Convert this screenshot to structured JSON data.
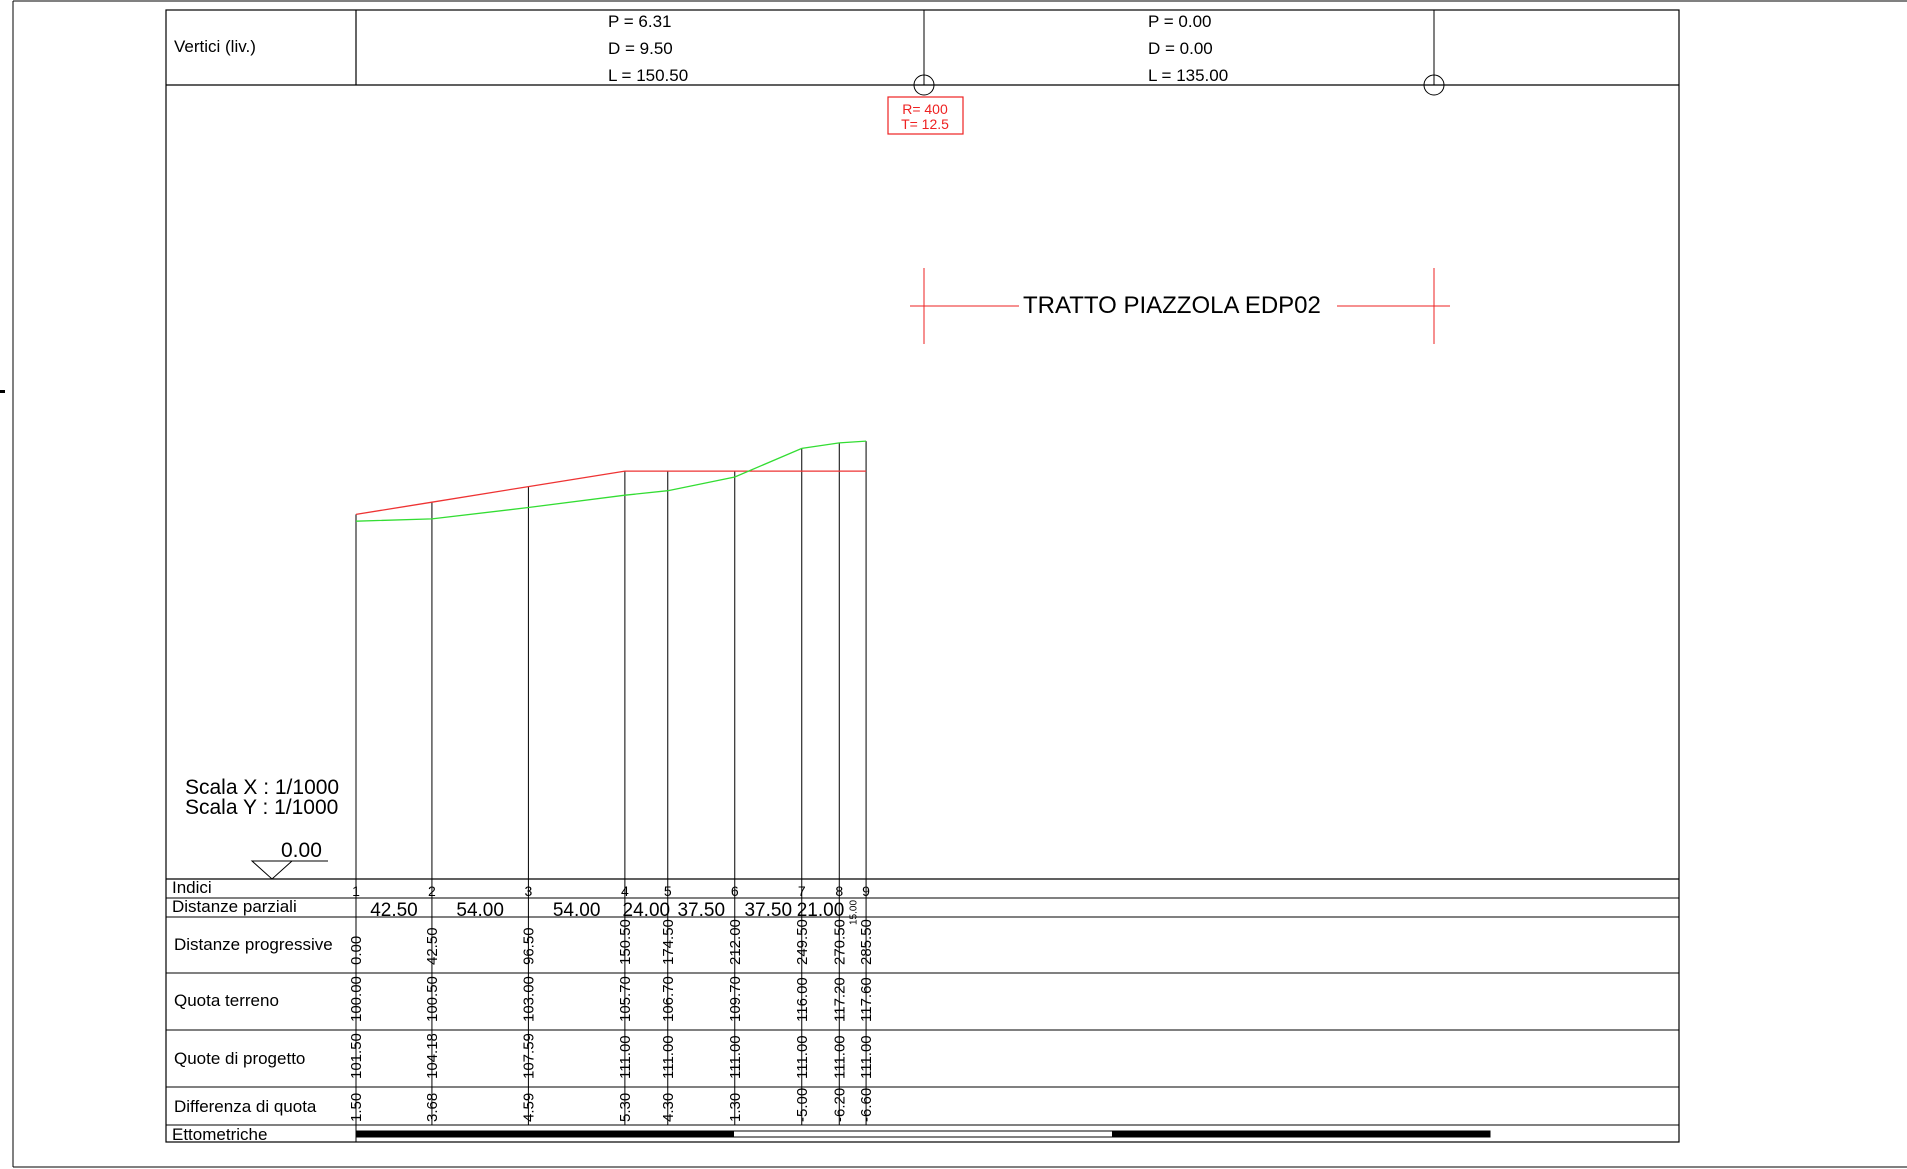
{
  "vertex_header": {
    "label": "Vertici (liv.)",
    "segments": [
      {
        "p": "P = 6.31",
        "d": "D = 9.50",
        "l": "L = 150.50"
      },
      {
        "p": "P = 0.00",
        "d": "D = 0.00",
        "l": "L = 135.00"
      }
    ],
    "curve_box": {
      "r": "R= 400",
      "t": "T= 12.5"
    }
  },
  "section_title": "TRATTO PIAZZOLA EDP02",
  "scale": {
    "x": "Scala X : 1/1000",
    "y": "Scala Y : 1/1000"
  },
  "datum": "0.00",
  "row_labels": {
    "indici": "Indici",
    "parziali": "Distanze parziali",
    "progressive": "Distanze progressive",
    "terreno": "Quota terreno",
    "progetto": "Quote di progetto",
    "differenza": "Differenza di quota",
    "ettometriche": "Ettometriche"
  },
  "colors": {
    "terrain": "#33dd33",
    "project": "#ee3333",
    "frame": "#000000",
    "red_box": "#ee2222"
  },
  "chart_data": {
    "type": "line",
    "title": "TRATTO PIAZZOLA EDP02",
    "x": [
      0.0,
      42.5,
      96.5,
      150.5,
      174.5,
      212.0,
      249.5,
      270.5,
      285.5
    ],
    "indici": [
      "1",
      "2",
      "3",
      "4",
      "5",
      "6",
      "7",
      "8",
      "9"
    ],
    "partial_distances": [
      "42.50",
      "54.00",
      "54.00",
      "24.00",
      "37.50",
      "37.50",
      "21.00",
      "15.00"
    ],
    "progressive": [
      "0.00",
      "42.50",
      "96.50",
      "150.50",
      "174.50",
      "212.00",
      "249.50",
      "270.50",
      "285.50"
    ],
    "quota_terreno": [
      "100.00",
      "100.50",
      "103.00",
      "105.70",
      "106.70",
      "109.70",
      "116.00",
      "117.20",
      "117.60"
    ],
    "quote_progetto": [
      "101.50",
      "104.18",
      "107.59",
      "111.00",
      "111.00",
      "111.00",
      "111.00",
      "111.00",
      "111.00"
    ],
    "differenza": [
      "1.50",
      "3.68",
      "4.59",
      "5.30",
      "4.30",
      "1.30",
      "-5.00",
      "-6.20",
      "-6.60"
    ],
    "series": [
      {
        "name": "Quota terreno",
        "values": [
          100.0,
          100.5,
          103.0,
          105.7,
          106.7,
          109.7,
          116.0,
          117.2,
          117.6
        ]
      },
      {
        "name": "Quote di progetto",
        "values": [
          101.5,
          104.18,
          107.59,
          111.0,
          111.0,
          111.0,
          111.0,
          111.0,
          111.0
        ]
      }
    ]
  }
}
